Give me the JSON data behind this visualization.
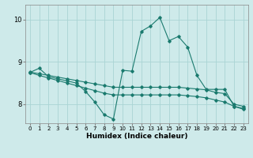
{
  "xlabel": "Humidex (Indice chaleur)",
  "bg_color": "#ceeaea",
  "grid_color": "#aad4d4",
  "line_color": "#1a7a6e",
  "xlim": [
    -0.5,
    23.5
  ],
  "ylim": [
    7.55,
    10.35
  ],
  "yticks": [
    8,
    9,
    10
  ],
  "xticks": [
    0,
    1,
    2,
    3,
    4,
    5,
    6,
    7,
    8,
    9,
    10,
    11,
    12,
    13,
    14,
    15,
    16,
    17,
    18,
    19,
    20,
    21,
    22,
    23
  ],
  "series": [
    {
      "x": [
        0,
        1,
        2,
        3,
        4,
        5,
        6,
        7,
        8,
        9,
        10,
        11,
        12,
        13,
        14,
        15,
        16,
        17,
        18,
        19,
        20,
        21,
        22,
        23
      ],
      "y": [
        8.75,
        8.85,
        8.65,
        8.6,
        8.55,
        8.5,
        8.3,
        8.05,
        7.75,
        7.65,
        8.8,
        8.78,
        9.72,
        9.85,
        10.05,
        9.5,
        9.6,
        9.35,
        8.68,
        8.35,
        8.35,
        8.35,
        7.95,
        7.9
      ]
    },
    {
      "x": [
        0,
        1,
        2,
        3,
        4,
        5,
        6,
        7,
        8,
        9,
        10,
        11,
        12,
        13,
        14,
        15,
        16,
        17,
        18,
        19,
        20,
        21,
        22,
        23
      ],
      "y": [
        8.76,
        8.72,
        8.68,
        8.64,
        8.6,
        8.56,
        8.52,
        8.48,
        8.44,
        8.4,
        8.4,
        8.4,
        8.4,
        8.4,
        8.4,
        8.4,
        8.4,
        8.38,
        8.36,
        8.34,
        8.28,
        8.25,
        8.0,
        7.95
      ]
    },
    {
      "x": [
        0,
        1,
        2,
        3,
        4,
        5,
        6,
        7,
        8,
        9,
        10,
        11,
        12,
        13,
        14,
        15,
        16,
        17,
        18,
        19,
        20,
        21,
        22,
        23
      ],
      "y": [
        8.75,
        8.68,
        8.62,
        8.56,
        8.5,
        8.44,
        8.38,
        8.32,
        8.26,
        8.22,
        8.22,
        8.22,
        8.22,
        8.22,
        8.22,
        8.22,
        8.22,
        8.2,
        8.18,
        8.15,
        8.1,
        8.05,
        7.95,
        7.88
      ]
    }
  ]
}
